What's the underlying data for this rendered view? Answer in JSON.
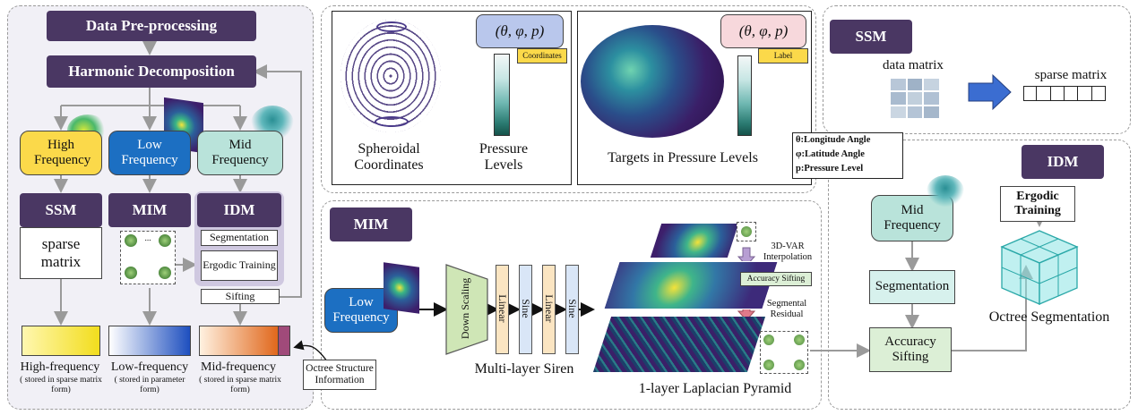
{
  "left": {
    "preprocess": "Data Pre-processing",
    "harmonic": "Harmonic Decomposition",
    "high": "High Frequency",
    "low": "Low Frequency",
    "mid": "Mid Frequency",
    "ssm": "SSM",
    "mim": "MIM",
    "idm": "IDM",
    "sparse": "sparse matrix",
    "segmentation": "Segmentation",
    "ergodic": "Ergodic Training",
    "sifting": "Sifting",
    "hf_title": "High-frequency",
    "hf_sub": "( stored in sparse matrix form)",
    "lf_title": "Low-frequency",
    "lf_sub": "( stored in parameter form)",
    "mf_title": "Mid-frequency",
    "mf_sub": "( stored in sparse matrix form)",
    "octree_info": "Octree Structure Information",
    "dots": "..."
  },
  "top": {
    "coord_label": "(θ, φ, p)",
    "coordinates_tag": "Coordinates",
    "label_tag": "Label",
    "spheroidal": "Spheroidal Coordinates",
    "pressure_levels": "Pressure Levels",
    "targets": "Targets in Pressure Levels",
    "theta_def": "θ:Longitude Angle",
    "phi_def": "φ:Latitude Angle",
    "p_def": "p:Pressure Level"
  },
  "ssm": {
    "title": "SSM",
    "data_matrix": "data matrix",
    "sparse_matrix": "sparse matrix"
  },
  "mim": {
    "title": "MIM",
    "low": "Low Frequency",
    "down": "Down Scaling",
    "linear1": "Linear",
    "sine1": "Sine",
    "linear2": "Linear",
    "sine2": "Sine",
    "siren": "Multi-layer Siren",
    "var": "3D-VAR Interpolation",
    "acc": "Accuracy Sifting",
    "seg_res": "Segmental Residual",
    "pyramid": "1-layer Laplacian Pyramid"
  },
  "idm": {
    "title": "IDM",
    "mid": "Mid Frequency",
    "segmentation": "Segmentation",
    "acc": "Accuracy Sifting",
    "ergodic": "Ergodic Training",
    "octree": "Octree Segmentation"
  },
  "colors": {
    "header": "#4a3763",
    "high": "#fbd94a",
    "low": "#1c6fc2",
    "mid": "#b9e3da",
    "idm_bg": "#cfc8e0",
    "accuracy": "#dcefd6"
  }
}
